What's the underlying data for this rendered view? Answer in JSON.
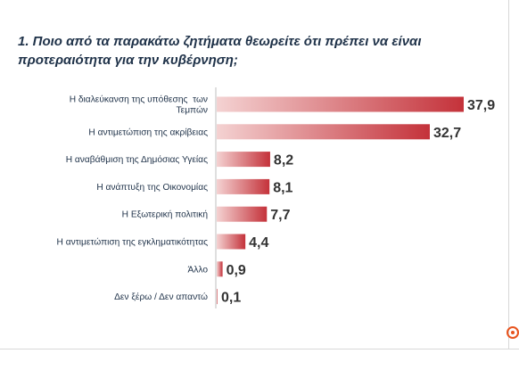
{
  "title_lines": [
    "1. Ποιο από τα παρακάτω ζητήματα θεωρείτε ότι πρέπει να είναι",
    "προτεραιότητα για την κυβέρνηση;"
  ],
  "chart_data": {
    "type": "bar",
    "orientation": "horizontal",
    "title": "1. Ποιο από τα παρακάτω ζητήματα θεωρείτε ότι πρέπει να είναι προτεραιότητα για την κυβέρνηση;",
    "categories": [
      [
        "Η διαλεύκανση της υπόθεσης  των",
        "Τεμπών"
      ],
      [
        "Η αντιμετώπιση της ακρίβειας"
      ],
      [
        "Η αναβάθμιση της Δημόσιας Υγείας"
      ],
      [
        "Η ανάπτυξη της Οικονομίας"
      ],
      [
        "Η Εξωτερική πολιτική"
      ],
      [
        "Η αντιμετώπιση της εγκληματικότητας"
      ],
      [
        "Άλλο"
      ],
      [
        "Δεν ξέρω / Δεν απαντώ"
      ]
    ],
    "values": [
      37.9,
      32.7,
      8.2,
      8.1,
      7.7,
      4.4,
      0.9,
      0.1
    ],
    "value_labels": [
      "37,9",
      "32,7",
      "8,2",
      "8,1",
      "7,7",
      "4,4",
      "0,9",
      "0,1"
    ],
    "xlim": [
      0,
      37.9
    ],
    "grid": false,
    "legend": "none",
    "bar_color_start": "#f4d2d2",
    "bar_color_end": "#c4323a"
  },
  "colors": {
    "title": "#1f3249",
    "axis": "#bfbfbf",
    "accent_icon": "#e8541e"
  }
}
